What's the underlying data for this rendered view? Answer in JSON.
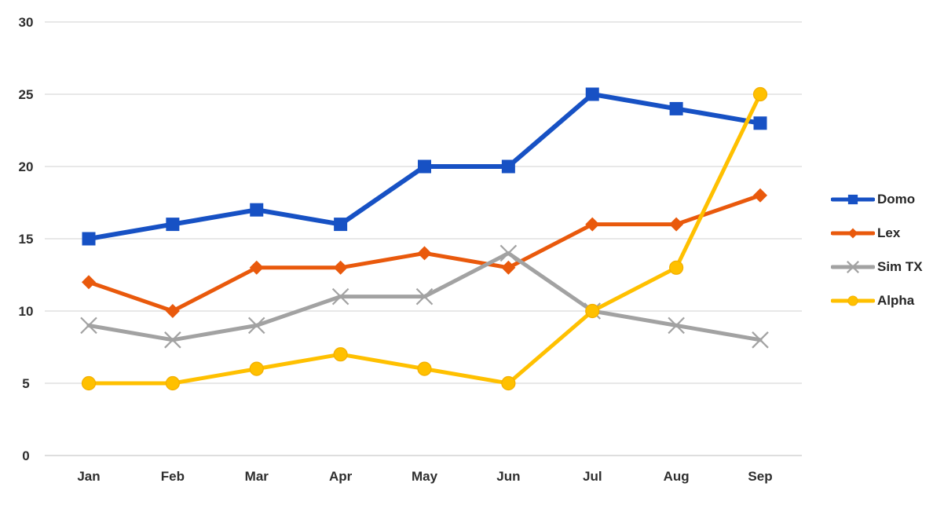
{
  "chart_data": {
    "type": "line",
    "title": "",
    "xlabel": "",
    "ylabel": "",
    "categories": [
      "Jan",
      "Feb",
      "Mar",
      "Apr",
      "May",
      "Jun",
      "Jul",
      "Aug",
      "Sep"
    ],
    "series": [
      {
        "name": "Domo",
        "marker": "square",
        "color": "#1751C4",
        "values": [
          15,
          16,
          17,
          16,
          20,
          20,
          25,
          24,
          23
        ]
      },
      {
        "name": "Lex",
        "marker": "diamond",
        "color": "#E9590C",
        "values": [
          12,
          10,
          13,
          13,
          14,
          13,
          16,
          16,
          18
        ]
      },
      {
        "name": "Sim TX",
        "marker": "x",
        "color": "#A2A2A2",
        "values": [
          9,
          8,
          9,
          11,
          11,
          14,
          10,
          9,
          8
        ]
      },
      {
        "name": "Alpha",
        "marker": "circle",
        "color": "#FFC000",
        "values": [
          5,
          5,
          6,
          7,
          6,
          5,
          10,
          13,
          25
        ]
      }
    ],
    "ylim": [
      0,
      30
    ],
    "yticks": [
      0,
      5,
      10,
      15,
      20,
      25,
      30
    ],
    "grid": "horizontal",
    "legend_position": "right",
    "legend_labels": [
      "Domo",
      "Lex",
      "Sim TX",
      "Alpha"
    ]
  },
  "colors": {
    "background": "#FFFFFF",
    "gridline": "#D9D9D9",
    "axis_line": "#C9C9C9",
    "tick_label": "#2E2E2E",
    "legend_label": "#262626"
  }
}
